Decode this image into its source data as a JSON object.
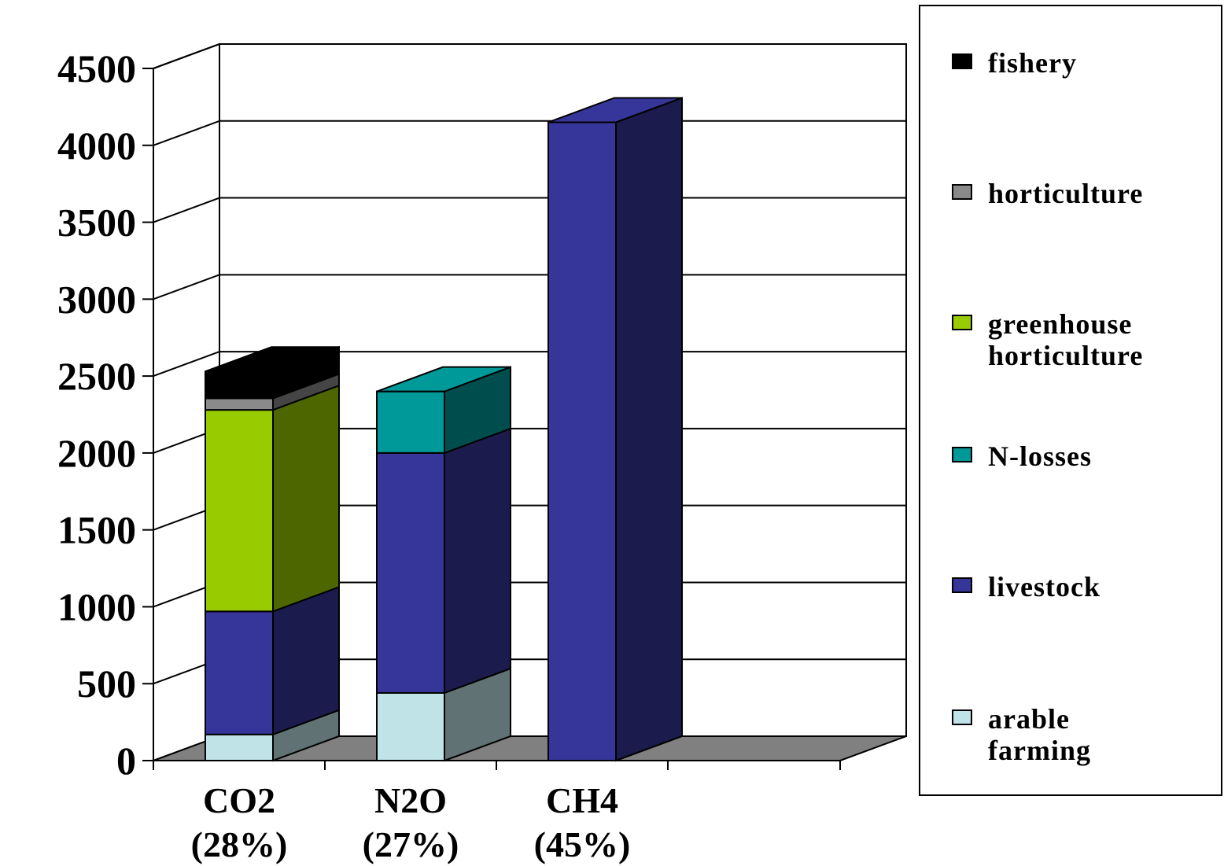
{
  "chart_data": {
    "type": "bar",
    "stacked": true,
    "three_d": true,
    "categories": [
      "CO2\n(28%)",
      "N2O\n(27%)",
      "CH4\n(45%)"
    ],
    "ylim": [
      0,
      4500
    ],
    "yticks": [
      0,
      500,
      1000,
      1500,
      2000,
      2500,
      3000,
      3500,
      4000,
      4500
    ],
    "grid": true,
    "legend_position": "right",
    "series": [
      {
        "name": "arable farming",
        "color": "#bfe3e6",
        "values": [
          170,
          440,
          0
        ]
      },
      {
        "name": "livestock",
        "color": "#36369a",
        "values": [
          800,
          1560,
          4150
        ]
      },
      {
        "name": "N-losses",
        "color": "#00999a",
        "values": [
          0,
          400,
          0
        ]
      },
      {
        "name": "greenhouse horticulture",
        "color": "#99cc00",
        "values": [
          1310,
          0,
          0
        ]
      },
      {
        "name": "horticulture",
        "color": "#8a8a8a",
        "values": [
          75,
          0,
          0
        ]
      },
      {
        "name": "fishery",
        "color": "#000000",
        "values": [
          175,
          0,
          0
        ]
      }
    ]
  },
  "legend": {
    "items": [
      {
        "label": "fishery",
        "color": "#000000"
      },
      {
        "label": "horticulture",
        "color": "#8a8a8a"
      },
      {
        "label": "greenhouse\nhorticulture",
        "color": "#99cc00"
      },
      {
        "label": "N-losses",
        "color": "#00999a"
      },
      {
        "label": "livestock",
        "color": "#36369a"
      },
      {
        "label": "arable\nfarming",
        "color": "#bfe3e6"
      }
    ]
  }
}
